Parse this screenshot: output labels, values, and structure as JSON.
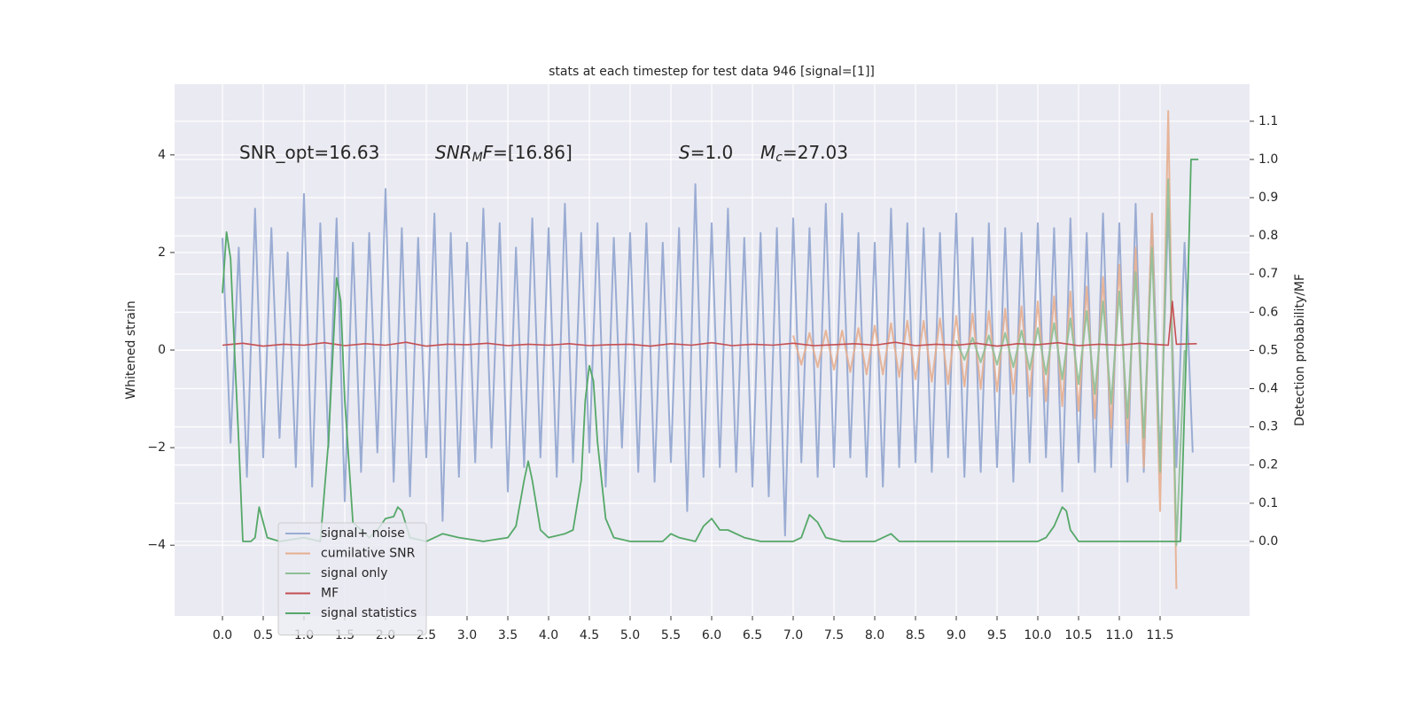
{
  "chart_data": {
    "type": "line",
    "title": "stats at each timestep for test data 946 [signal=[1]]",
    "ylabel": "Whitened strain",
    "y2label": "Detection probability/MF",
    "grid": true,
    "background": "#eaeaf2",
    "legend": "lower left",
    "xlim": [
      -0.587,
      12.598
    ],
    "ylim": [
      -5.45,
      5.45
    ],
    "y2lim": [
      -0.195,
      1.197
    ],
    "xticks": [
      {
        "value": 0,
        "label": "0.0"
      },
      0.5,
      {
        "value": 1,
        "label": "1.0"
      },
      1.5,
      {
        "value": 2,
        "label": "2.0"
      },
      2.5,
      {
        "value": 3,
        "label": "3.0"
      },
      3.5,
      {
        "value": 4,
        "label": "4.0"
      },
      4.5,
      {
        "value": 5,
        "label": "5.0"
      },
      5.5,
      {
        "value": 6,
        "label": "6.0"
      },
      6.5,
      {
        "value": 7,
        "label": "7.0"
      },
      7.5,
      {
        "value": 8,
        "label": "8.0"
      },
      8.5,
      {
        "value": 9,
        "label": "9.0"
      },
      9.5,
      {
        "value": 10,
        "label": "10.0"
      },
      10.5,
      {
        "value": 11,
        "label": "11.0"
      },
      11.5
    ],
    "yticks": [
      {
        "value": -4,
        "label": "−4"
      },
      {
        "value": -2,
        "label": "−2"
      },
      0,
      2,
      4
    ],
    "y2ticks": [
      {
        "value": 0,
        "label": "0.0"
      },
      0.1,
      0.2,
      0.3,
      0.4,
      0.5,
      0.6,
      0.7,
      0.8,
      0.9,
      {
        "value": 1,
        "label": "1.0"
      },
      1.1
    ],
    "annotations": [
      {
        "segments": [
          {
            "text": "SNR_opt=16.63"
          }
        ]
      },
      {
        "segments": [
          {
            "text": "SNR",
            "italic": true
          },
          {
            "text": "M",
            "italic": true,
            "sub": true
          },
          {
            "text": "F",
            "italic": true
          },
          {
            "text": "=[16.86]"
          }
        ]
      },
      {
        "segments": [
          {
            "text": "S",
            "italic": true
          },
          {
            "text": "=1.0"
          }
        ]
      },
      {
        "segments": [
          {
            "text": "M",
            "italic": true
          },
          {
            "text": "c",
            "italic": true,
            "sub": true
          },
          {
            "text": "=27.03"
          }
        ]
      }
    ],
    "series": [
      {
        "name": "signal+ noise",
        "color": "#9aacd3",
        "axis": "y",
        "x": [
          0.0,
          0.1,
          0.2,
          0.3,
          0.4,
          0.5,
          0.6,
          0.7,
          0.8,
          0.9,
          1.0,
          1.1,
          1.2,
          1.3,
          1.4,
          1.5,
          1.6,
          1.7,
          1.8,
          1.9,
          2.0,
          2.1,
          2.2,
          2.3,
          2.4,
          2.5,
          2.6,
          2.7,
          2.8,
          2.9,
          3.0,
          3.1,
          3.2,
          3.3,
          3.4,
          3.5,
          3.6,
          3.7,
          3.8,
          3.9,
          4.0,
          4.1,
          4.2,
          4.3,
          4.4,
          4.5,
          4.6,
          4.7,
          4.8,
          4.9,
          5.0,
          5.1,
          5.2,
          5.3,
          5.4,
          5.5,
          5.6,
          5.7,
          5.8,
          5.9,
          6.0,
          6.1,
          6.2,
          6.3,
          6.4,
          6.5,
          6.6,
          6.7,
          6.8,
          6.9,
          7.0,
          7.1,
          7.2,
          7.3,
          7.4,
          7.5,
          7.6,
          7.7,
          7.8,
          7.9,
          8.0,
          8.1,
          8.2,
          8.3,
          8.4,
          8.5,
          8.6,
          8.7,
          8.8,
          8.9,
          9.0,
          9.1,
          9.2,
          9.3,
          9.4,
          9.5,
          9.6,
          9.7,
          9.8,
          9.9,
          10.0,
          10.1,
          10.2,
          10.3,
          10.4,
          10.5,
          10.6,
          10.7,
          10.8,
          10.9,
          11.0,
          11.1,
          11.2,
          11.3,
          11.4,
          11.5,
          11.6,
          11.7,
          11.8,
          11.9
        ],
        "values": [
          2.3,
          -1.9,
          2.1,
          -2.6,
          2.9,
          -2.2,
          2.5,
          -1.8,
          2.0,
          -2.4,
          3.2,
          -2.8,
          2.6,
          -2.0,
          2.7,
          -3.1,
          2.2,
          -2.5,
          2.4,
          -2.1,
          3.3,
          -2.7,
          2.5,
          -3.0,
          2.3,
          -2.2,
          2.8,
          -3.5,
          2.4,
          -2.6,
          2.2,
          -2.3,
          2.9,
          -2.0,
          2.6,
          -2.9,
          2.1,
          -2.4,
          2.7,
          -2.2,
          2.5,
          -2.6,
          3.0,
          -2.3,
          2.4,
          -2.1,
          2.6,
          -2.8,
          2.3,
          -2.0,
          2.4,
          -2.5,
          2.6,
          -2.7,
          2.2,
          -2.3,
          2.5,
          -3.3,
          3.4,
          -2.6,
          2.6,
          -2.4,
          2.9,
          -2.5,
          2.3,
          -2.8,
          2.4,
          -3.0,
          2.5,
          -3.8,
          2.7,
          -2.3,
          2.5,
          -2.6,
          3.0,
          -2.4,
          2.8,
          -2.2,
          2.4,
          -2.6,
          2.2,
          -2.8,
          2.9,
          -2.4,
          2.6,
          -2.3,
          2.5,
          -2.5,
          2.4,
          -2.2,
          2.8,
          -2.6,
          2.3,
          -2.5,
          2.6,
          -2.4,
          2.5,
          -2.7,
          2.4,
          -2.3,
          2.6,
          -2.2,
          2.5,
          -2.9,
          2.7,
          -2.3,
          2.4,
          -2.5,
          2.8,
          -2.4,
          2.6,
          -2.7,
          3.0,
          -2.5,
          2.8,
          -2.3,
          2.9,
          -2.4,
          2.2,
          -2.1
        ]
      },
      {
        "name": "cumilative SNR",
        "color": "#e6ae8f",
        "axis": "y",
        "x": [
          7.0,
          7.1,
          7.2,
          7.3,
          7.4,
          7.5,
          7.6,
          7.7,
          7.8,
          7.9,
          8.0,
          8.1,
          8.2,
          8.3,
          8.4,
          8.5,
          8.6,
          8.7,
          8.8,
          8.9,
          9.0,
          9.1,
          9.2,
          9.3,
          9.4,
          9.5,
          9.6,
          9.7,
          9.8,
          9.9,
          10.0,
          10.1,
          10.2,
          10.3,
          10.4,
          10.5,
          10.6,
          10.7,
          10.8,
          10.9,
          11.0,
          11.1,
          11.2,
          11.3,
          11.4,
          11.5,
          11.6,
          11.7
        ],
        "values": [
          0.3,
          -0.3,
          0.35,
          -0.35,
          0.4,
          -0.4,
          0.4,
          -0.45,
          0.45,
          -0.5,
          0.5,
          -0.5,
          0.55,
          -0.55,
          0.6,
          -0.6,
          0.6,
          -0.65,
          0.65,
          -0.7,
          0.7,
          -0.75,
          0.75,
          -0.8,
          0.8,
          -0.85,
          0.85,
          -0.9,
          0.9,
          -0.95,
          1.0,
          -1.05,
          1.1,
          -1.15,
          1.2,
          -1.25,
          1.3,
          -1.4,
          1.5,
          -1.6,
          1.75,
          -1.9,
          2.1,
          -2.4,
          2.8,
          -3.3,
          4.9,
          -4.9
        ]
      },
      {
        "name": "signal only",
        "color": "#8fbf95",
        "axis": "y",
        "x": [
          9.0,
          9.1,
          9.2,
          9.3,
          9.4,
          9.5,
          9.6,
          9.7,
          9.8,
          9.9,
          10.0,
          10.1,
          10.2,
          10.3,
          10.4,
          10.5,
          10.6,
          10.7,
          10.8,
          10.9,
          11.0,
          11.1,
          11.2,
          11.3,
          11.4,
          11.5,
          11.6,
          11.7,
          11.8
        ],
        "values": [
          0.2,
          -0.2,
          0.25,
          -0.25,
          0.3,
          -0.3,
          0.35,
          -0.35,
          0.4,
          -0.4,
          0.45,
          -0.5,
          0.55,
          -0.6,
          0.65,
          -0.7,
          0.8,
          -0.9,
          1.0,
          -1.1,
          1.2,
          -1.4,
          1.6,
          -1.8,
          2.1,
          -2.5,
          3.5,
          -4.0,
          0.0
        ]
      },
      {
        "name": "MF",
        "color": "#c44e52",
        "axis": "y",
        "x": [
          0.0,
          0.25,
          0.5,
          0.75,
          1.0,
          1.25,
          1.5,
          1.75,
          2.0,
          2.25,
          2.5,
          2.75,
          3.0,
          3.25,
          3.5,
          3.75,
          4.0,
          4.25,
          4.5,
          4.75,
          5.0,
          5.25,
          5.5,
          5.75,
          6.0,
          6.25,
          6.5,
          6.75,
          7.0,
          7.25,
          7.5,
          7.75,
          8.0,
          8.25,
          8.5,
          8.75,
          9.0,
          9.25,
          9.5,
          9.75,
          10.0,
          10.25,
          10.5,
          10.75,
          11.0,
          11.25,
          11.5,
          11.6,
          11.65,
          11.7,
          11.95
        ],
        "values": [
          0.1,
          0.14,
          0.08,
          0.12,
          0.1,
          0.15,
          0.09,
          0.13,
          0.1,
          0.16,
          0.08,
          0.12,
          0.11,
          0.14,
          0.09,
          0.12,
          0.1,
          0.13,
          0.09,
          0.11,
          0.12,
          0.08,
          0.13,
          0.1,
          0.15,
          0.09,
          0.12,
          0.1,
          0.14,
          0.09,
          0.11,
          0.13,
          0.1,
          0.16,
          0.09,
          0.12,
          0.1,
          0.14,
          0.08,
          0.13,
          0.11,
          0.15,
          0.09,
          0.12,
          0.1,
          0.14,
          0.11,
          0.1,
          1.0,
          0.12,
          0.13
        ]
      },
      {
        "name": "signal statistics",
        "color": "#55a868",
        "axis": "y2",
        "x": [
          0.0,
          0.05,
          0.1,
          0.15,
          0.2,
          0.25,
          0.35,
          0.4,
          0.45,
          0.5,
          0.55,
          0.7,
          1.0,
          1.2,
          1.3,
          1.4,
          1.45,
          1.5,
          1.6,
          1.8,
          1.9,
          2.0,
          2.1,
          2.15,
          2.2,
          2.3,
          2.5,
          2.7,
          2.9,
          3.2,
          3.5,
          3.6,
          3.7,
          3.75,
          3.8,
          3.9,
          4.0,
          4.2,
          4.3,
          4.4,
          4.45,
          4.5,
          4.55,
          4.6,
          4.7,
          4.8,
          5.0,
          5.4,
          5.5,
          5.6,
          5.8,
          5.9,
          6.0,
          6.1,
          6.2,
          6.4,
          6.6,
          7.0,
          7.1,
          7.2,
          7.3,
          7.4,
          7.6,
          8.0,
          8.2,
          8.3,
          9.0,
          10.0,
          10.1,
          10.2,
          10.3,
          10.35,
          10.4,
          10.5,
          11.0,
          11.5,
          11.75,
          11.82,
          11.88,
          11.97
        ],
        "values": [
          0.65,
          0.81,
          0.74,
          0.49,
          0.26,
          0.0,
          0.0,
          0.01,
          0.09,
          0.05,
          0.01,
          0.0,
          0.01,
          0.0,
          0.26,
          0.69,
          0.63,
          0.37,
          0.05,
          0.01,
          0.03,
          0.06,
          0.065,
          0.09,
          0.08,
          0.01,
          0.0,
          0.02,
          0.01,
          0.0,
          0.01,
          0.04,
          0.16,
          0.21,
          0.16,
          0.03,
          0.01,
          0.02,
          0.03,
          0.16,
          0.37,
          0.46,
          0.42,
          0.26,
          0.06,
          0.01,
          0.0,
          0.0,
          0.02,
          0.01,
          0.0,
          0.04,
          0.06,
          0.03,
          0.03,
          0.01,
          0.0,
          0.0,
          0.01,
          0.07,
          0.05,
          0.01,
          0.0,
          0.0,
          0.02,
          0.0,
          0.0,
          0.0,
          0.01,
          0.04,
          0.09,
          0.08,
          0.03,
          0.0,
          0.0,
          0.0,
          0.0,
          0.49,
          1.0,
          1.0
        ]
      }
    ]
  }
}
